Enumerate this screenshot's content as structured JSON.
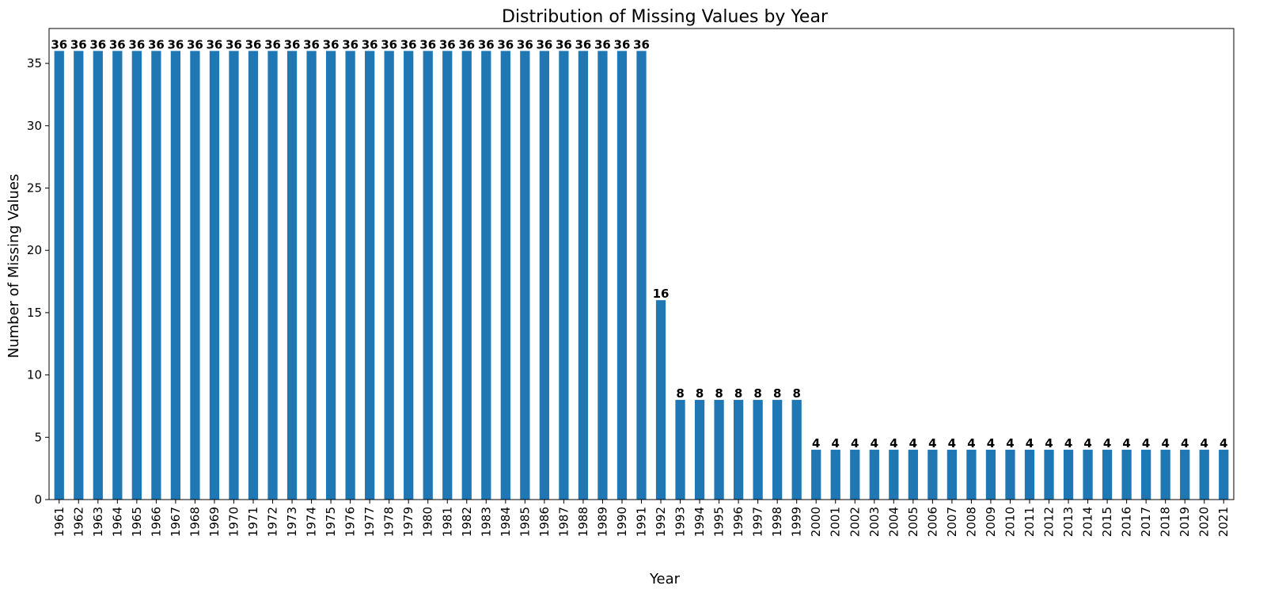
{
  "chart_data": {
    "type": "bar",
    "title": "Distribution of Missing Values by Year",
    "xlabel": "Year",
    "ylabel": "Number of Missing Values",
    "ylim": [
      0,
      37.8
    ],
    "yticks": [
      0,
      5,
      10,
      15,
      20,
      25,
      30,
      35
    ],
    "grid": false,
    "legend": "none",
    "bar_color": "#1f77b4",
    "categories": [
      "1961",
      "1962",
      "1963",
      "1964",
      "1965",
      "1966",
      "1967",
      "1968",
      "1969",
      "1970",
      "1971",
      "1972",
      "1973",
      "1974",
      "1975",
      "1976",
      "1977",
      "1978",
      "1979",
      "1980",
      "1981",
      "1982",
      "1983",
      "1984",
      "1985",
      "1986",
      "1987",
      "1988",
      "1989",
      "1990",
      "1991",
      "1992",
      "1993",
      "1994",
      "1995",
      "1996",
      "1997",
      "1998",
      "1999",
      "2000",
      "2001",
      "2002",
      "2003",
      "2004",
      "2005",
      "2006",
      "2007",
      "2008",
      "2009",
      "2010",
      "2011",
      "2012",
      "2013",
      "2014",
      "2015",
      "2016",
      "2017",
      "2018",
      "2019",
      "2020",
      "2021"
    ],
    "values": [
      36,
      36,
      36,
      36,
      36,
      36,
      36,
      36,
      36,
      36,
      36,
      36,
      36,
      36,
      36,
      36,
      36,
      36,
      36,
      36,
      36,
      36,
      36,
      36,
      36,
      36,
      36,
      36,
      36,
      36,
      36,
      16,
      8,
      8,
      8,
      8,
      8,
      8,
      8,
      4,
      4,
      4,
      4,
      4,
      4,
      4,
      4,
      4,
      4,
      4,
      4,
      4,
      4,
      4,
      4,
      4,
      4,
      4,
      4,
      4,
      4
    ],
    "data_labels": [
      "36",
      "36",
      "36",
      "36",
      "36",
      "36",
      "36",
      "36",
      "36",
      "36",
      "36",
      "36",
      "36",
      "36",
      "36",
      "36",
      "36",
      "36",
      "36",
      "36",
      "36",
      "36",
      "36",
      "36",
      "36",
      "36",
      "36",
      "36",
      "36",
      "36",
      "36",
      "16",
      "8",
      "8",
      "8",
      "8",
      "8",
      "8",
      "8",
      "4",
      "4",
      "4",
      "4",
      "4",
      "4",
      "4",
      "4",
      "4",
      "4",
      "4",
      "4",
      "4",
      "4",
      "4",
      "4",
      "4",
      "4",
      "4",
      "4",
      "4",
      "4"
    ]
  }
}
